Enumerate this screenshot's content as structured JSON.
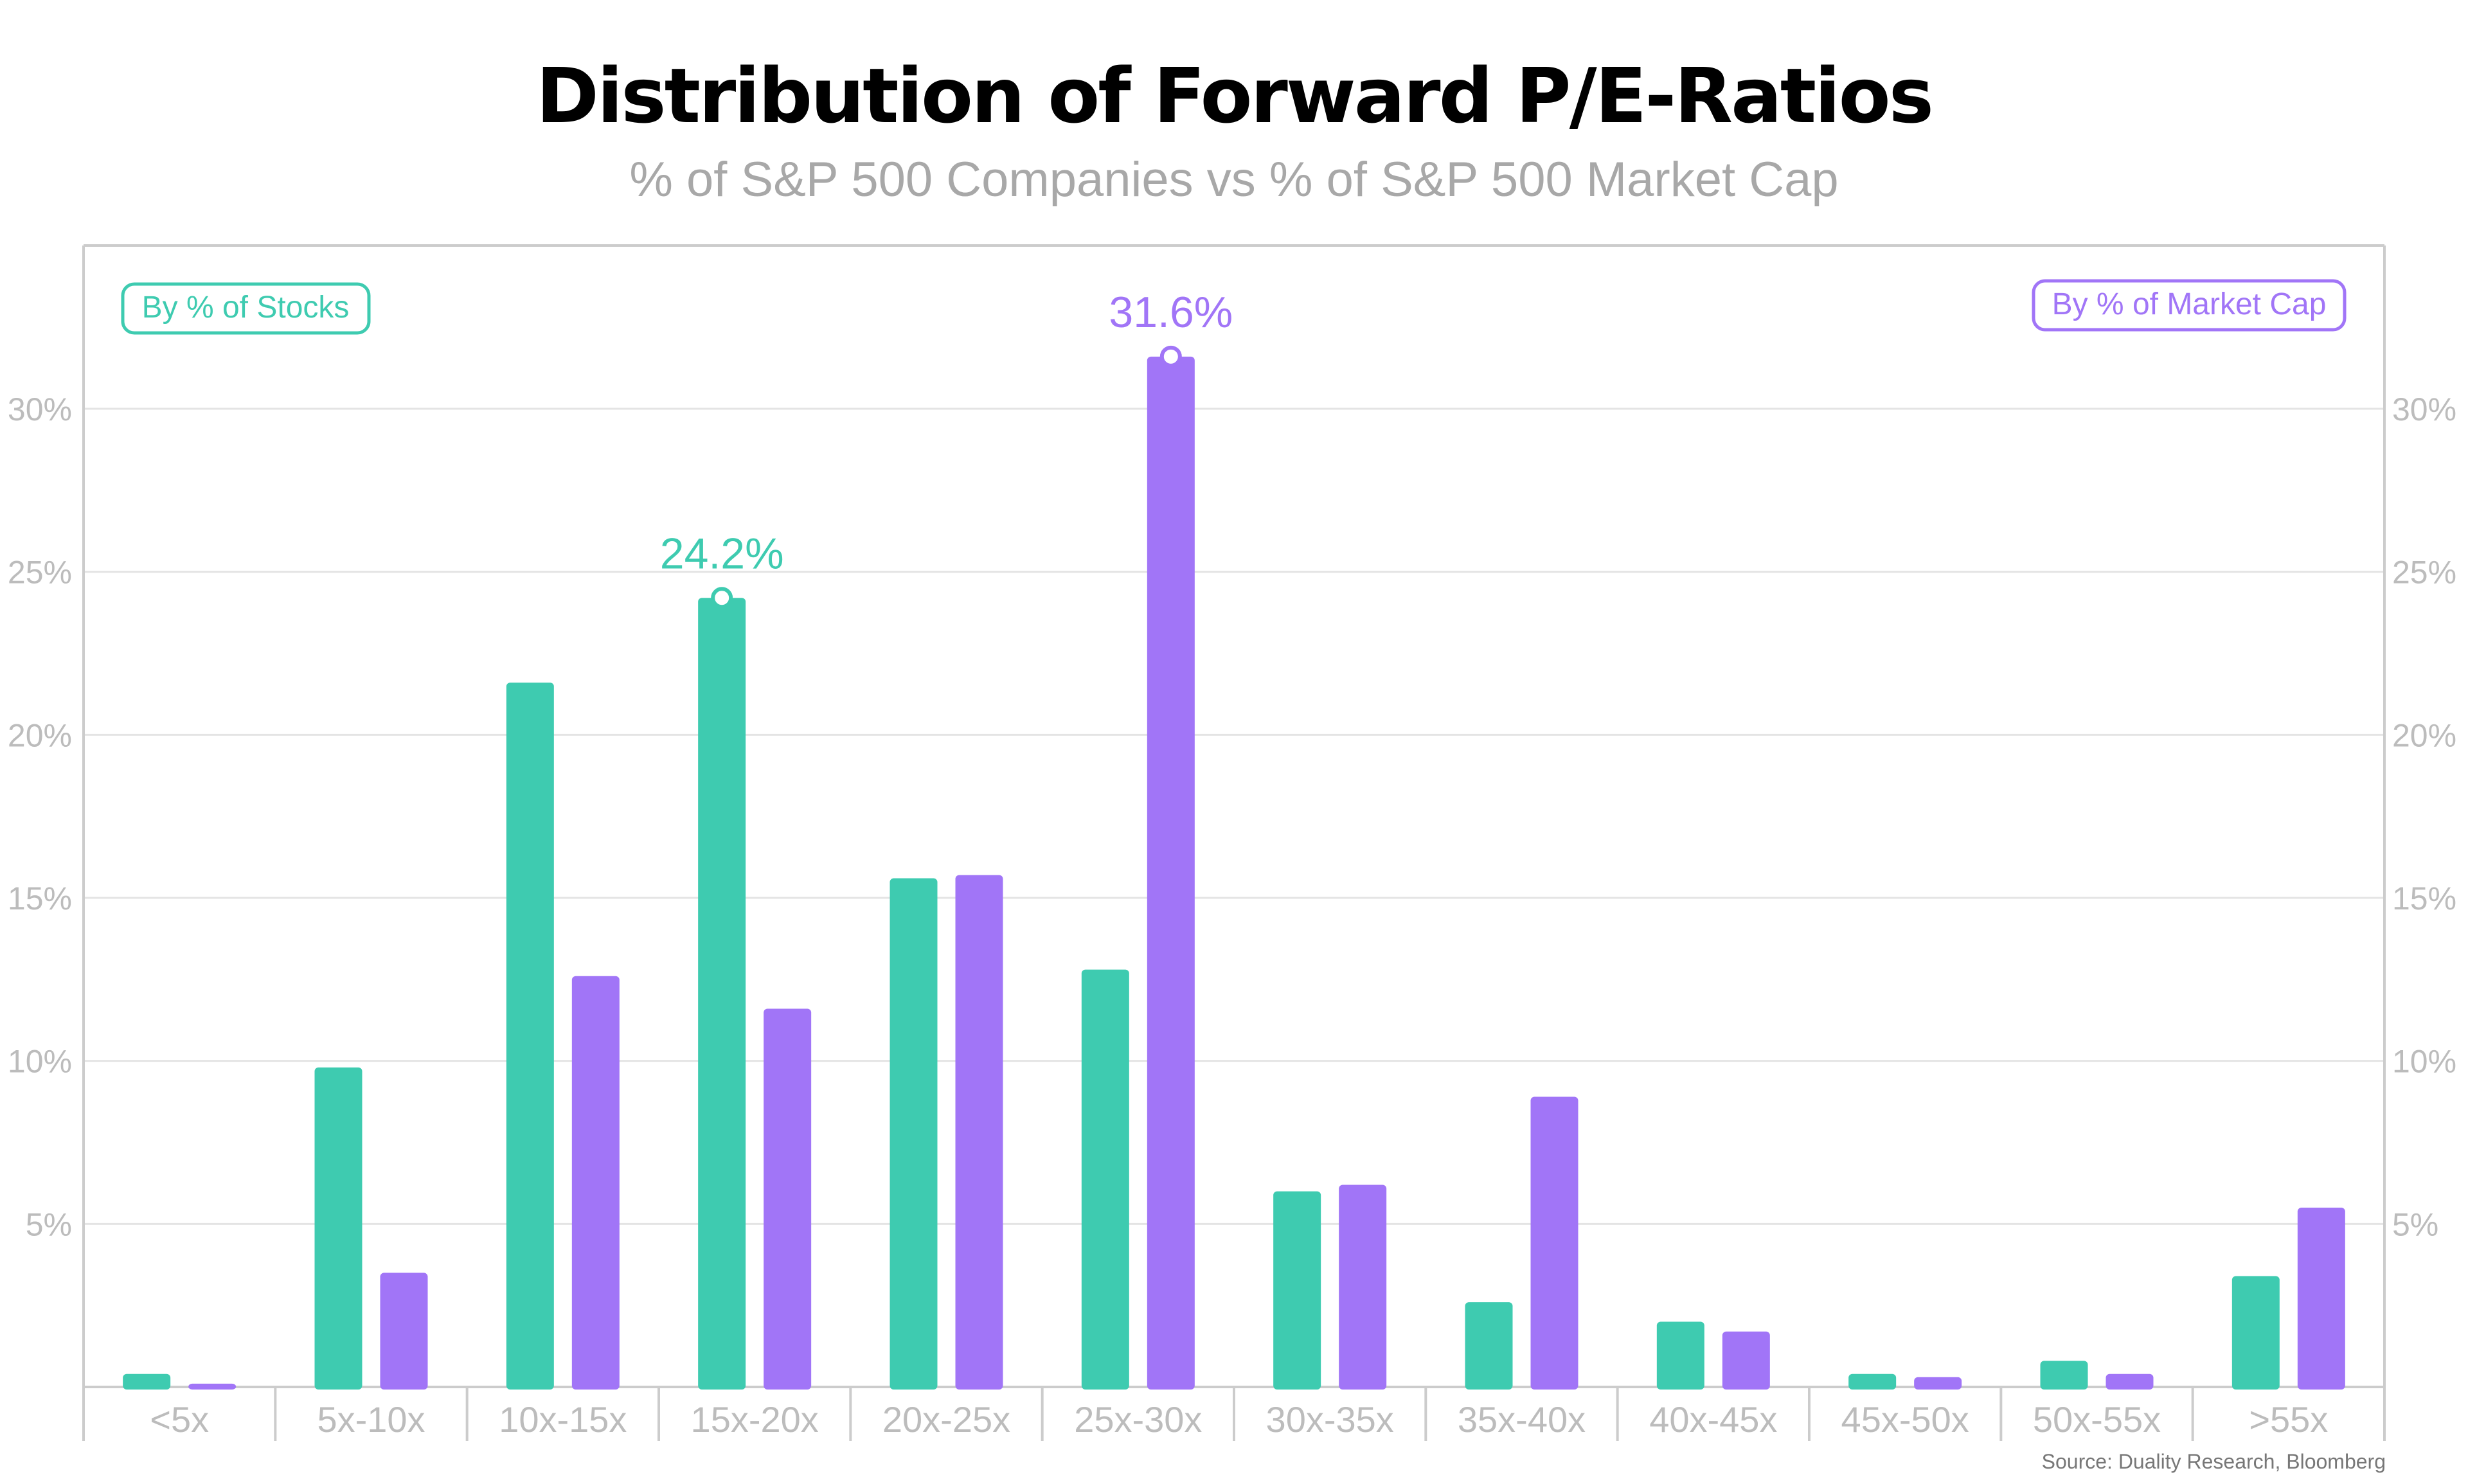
{
  "chart_data": {
    "type": "bar",
    "title": "Distribution of Forward P/E-Ratios",
    "subtitle": "% of S&P 500 Companies vs % of S&P 500 Market Cap",
    "categories": [
      "<5x",
      "5x-10x",
      "10x-15x",
      "15x-20x",
      "20x-25x",
      "25x-30x",
      "30x-35x",
      "35x-40x",
      "40x-45x",
      "45x-50x",
      "50x-55x",
      ">55x"
    ],
    "series": [
      {
        "name": "By % of Stocks",
        "color": "#3ecbb0",
        "values": [
          0.4,
          9.8,
          21.6,
          24.2,
          15.6,
          12.8,
          6.0,
          2.6,
          2.0,
          0.4,
          0.8,
          3.4
        ]
      },
      {
        "name": "By % of Market Cap",
        "color": "#a175f7",
        "values": [
          0.1,
          3.5,
          12.6,
          11.6,
          15.7,
          31.6,
          6.2,
          8.9,
          1.7,
          0.3,
          0.4,
          5.5
        ]
      }
    ],
    "ylim": [
      0,
      35
    ],
    "yticks": [
      5,
      10,
      15,
      20,
      25,
      30
    ],
    "ytick_labels": [
      "5%",
      "10%",
      "15%",
      "20%",
      "25%",
      "30%"
    ],
    "annotations": [
      {
        "series": 0,
        "category": 3,
        "label": "24.2%"
      },
      {
        "series": 1,
        "category": 5,
        "label": "31.6%"
      }
    ],
    "grid": true,
    "legend_placement": "top-left and top-right",
    "source": "Source: Duality Research, Bloomberg"
  },
  "colors": {
    "stocks": "#3ecbb0",
    "market_cap": "#a175f7",
    "grid": "#e4e4e4",
    "axis": "#cccccc",
    "tick_text": "#bcbcbc",
    "title": "#000000",
    "subtitle": "#a8a8a8",
    "source": "#777777"
  }
}
